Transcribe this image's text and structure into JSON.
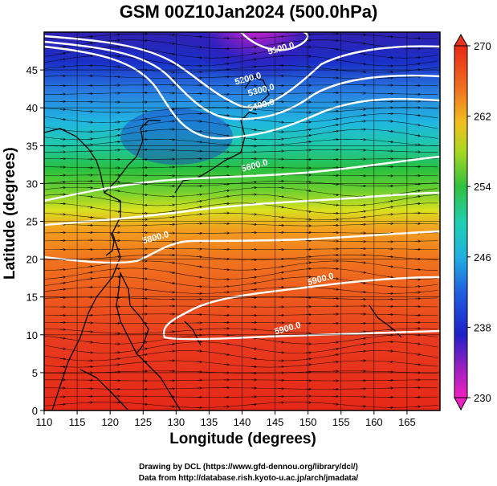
{
  "title": "GSM 00Z10Jan2024 (500.0hPa)",
  "xlabel": "Longitude (degrees)",
  "ylabel": "Latitude  (degrees)",
  "credits": {
    "line1": "Drawing by DCL (https://www.gfd-dennou.org/library/dcl/)",
    "line2": "Data from http://database.rish.kyoto-u.ac.jp/arch/jmadata/"
  },
  "chart_data": {
    "type": "heatmap",
    "xlim": [
      110,
      170
    ],
    "ylim": [
      0,
      50
    ],
    "xticks": [
      "110",
      "115",
      "120",
      "125",
      "130",
      "135",
      "140",
      "145",
      "150",
      "155",
      "160",
      "165"
    ],
    "yticks": [
      "0",
      "5",
      "10",
      "15",
      "20",
      "25",
      "30",
      "35",
      "40",
      "45"
    ],
    "colorbar": {
      "min": 230,
      "max": 270,
      "labels": [
        "270",
        "262",
        "254",
        "246",
        "238",
        "230"
      ]
    },
    "colors": {
      "magenta": "#e020c0",
      "purple": "#8020c0",
      "blue": "#1a30c8",
      "sky": "#2aa0e0",
      "cyan": "#20d0c8",
      "green": "#30c040",
      "yellow": "#d8e020",
      "orange": "#f09020",
      "red": "#e83020"
    },
    "contours": [
      {
        "label": "5100.0",
        "lon": 146,
        "lat": 47.5
      },
      {
        "label": "5200.0",
        "lon": 141,
        "lat": 43.5
      },
      {
        "label": "5300.0",
        "lon": 143,
        "lat": 42
      },
      {
        "label": "5400.0",
        "lon": 143,
        "lat": 40
      },
      {
        "label": "5600.0",
        "lon": 142,
        "lat": 32
      },
      {
        "label": "5800.0",
        "lon": 127,
        "lat": 22.5
      },
      {
        "label": "5900.0",
        "lon": 152,
        "lat": 17
      },
      {
        "label": "5900.0",
        "lon": 147,
        "lat": 10.5
      }
    ],
    "grid": true
  }
}
